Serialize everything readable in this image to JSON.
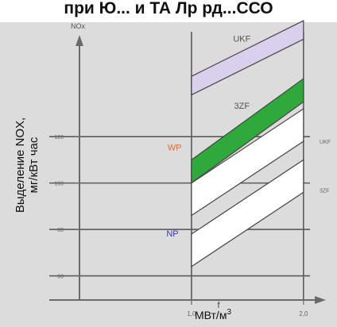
{
  "header_text": "при Ю... и ТА Лр рд...ССО",
  "chart_data": {
    "type": "area",
    "title": "",
    "y_axis_title": "NOx",
    "y_axis_label_line1": "Выделение NOX,",
    "y_axis_label_line2": "мг/кВт час",
    "x_axis_label": "МВт/м3",
    "x_axis_label_base": "МВт/м",
    "x_axis_label_sup": "3",
    "x_axis_mid_tick_label": "f",
    "xlim": [
      0.0,
      2.2
    ],
    "ylim": [
      53,
      170
    ],
    "x_ticks": [
      {
        "value": 1.0,
        "label": "1,0"
      },
      {
        "value": 2.0,
        "label": "2,0"
      }
    ],
    "y_ticks": [
      {
        "value": 60,
        "label": "60"
      },
      {
        "value": 80,
        "label": "80"
      },
      {
        "value": 100,
        "label": "100"
      },
      {
        "value": 120,
        "label": "120"
      }
    ],
    "grid_y": [
      60,
      80,
      100,
      120
    ],
    "grid_x": [
      1.0,
      2.0
    ],
    "bands": [
      {
        "name": "UKF",
        "color": "#d8d0ec",
        "lower": [
          [
            1.0,
            138
          ],
          [
            2.0,
            162
          ]
        ],
        "upper": [
          [
            1.0,
            146
          ],
          [
            2.0,
            170
          ]
        ]
      },
      {
        "name": "3ZF",
        "color": "#2fa83c",
        "lower": [
          [
            1.0,
            100
          ],
          [
            2.0,
            135
          ]
        ],
        "upper": [
          [
            1.0,
            110
          ],
          [
            2.0,
            145
          ]
        ]
      },
      {
        "name": "",
        "color": "#ffffff",
        "lower": [
          [
            1.0,
            86
          ],
          [
            2.0,
            118
          ]
        ],
        "upper": [
          [
            1.0,
            100
          ],
          [
            2.0,
            132
          ]
        ]
      },
      {
        "name": "",
        "color": "#ffffff",
        "lower": [
          [
            1.0,
            64
          ],
          [
            2.0,
            96
          ]
        ],
        "upper": [
          [
            1.0,
            78
          ],
          [
            2.0,
            110
          ]
        ]
      }
    ],
    "band_labels": [
      {
        "text": "UKF",
        "x": 1.45,
        "y": 161,
        "color": "#555555"
      },
      {
        "text": "3ZF",
        "x": 1.45,
        "y": 132,
        "color": "#555555"
      },
      {
        "text": "WP",
        "x": 0.85,
        "y": 114,
        "color": "#e06a2a"
      },
      {
        "text": "NP",
        "x": 0.83,
        "y": 77,
        "color": "#3a3aa8"
      }
    ],
    "right_labels": [
      {
        "text": "UKF",
        "y": 118
      },
      {
        "text": "3ZF",
        "y": 97
      }
    ],
    "colors": {
      "background": "#dcdcdc",
      "axis": "#6a6a6a",
      "grid": "#5a5a5a",
      "tick_text": "#666666"
    }
  }
}
